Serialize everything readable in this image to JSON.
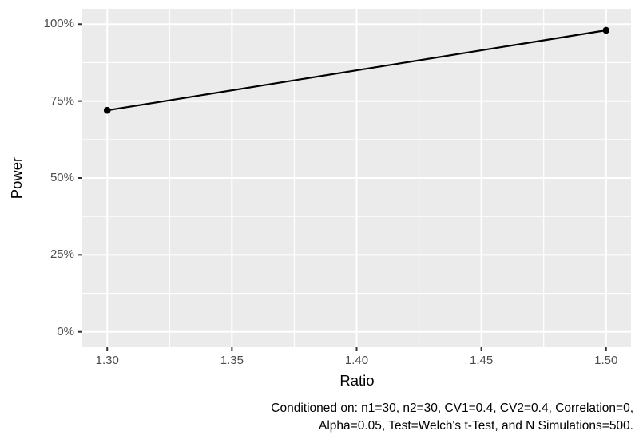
{
  "chart_data": {
    "type": "line",
    "title": "",
    "xlabel": "Ratio",
    "ylabel": "Power",
    "x": [
      1.3,
      1.5
    ],
    "series": [
      {
        "name": "Power",
        "values": [
          72,
          98
        ]
      }
    ],
    "x_ticks": {
      "values": [
        1.3,
        1.35,
        1.4,
        1.45,
        1.5
      ],
      "labels": [
        "1.30",
        "1.35",
        "1.40",
        "1.45",
        "1.50"
      ]
    },
    "y_ticks": {
      "values": [
        0,
        25,
        50,
        75,
        100
      ],
      "labels": [
        "0%",
        "25%",
        "50%",
        "75%",
        "100%"
      ]
    },
    "x_minor": [
      1.325,
      1.375,
      1.425,
      1.475
    ],
    "y_minor": [
      12.5,
      37.5,
      62.5,
      87.5
    ],
    "x_range": [
      1.29,
      1.51
    ],
    "y_range": [
      -5,
      105
    ],
    "grid": true,
    "legend_position": "none",
    "style": {
      "panel_bg": "#EBEBEB",
      "grid_color": "#FFFFFF",
      "line_color": "#000000",
      "point_color": "#000000",
      "axis_text_color": "#4D4D4D",
      "axis_title_color": "#000000",
      "tick_mark_color": "#333333"
    }
  },
  "caption": {
    "line1": "Conditioned on: n1=30, n2=30, CV1=0.4, CV2=0.4, Correlation=0,",
    "line2": "Alpha=0.05, Test=Welch's t-Test, and N Simulations=500."
  }
}
